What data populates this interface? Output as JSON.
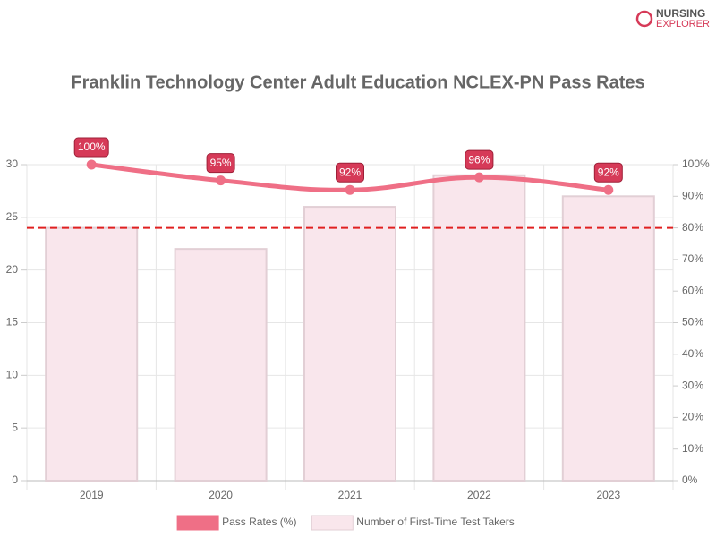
{
  "chart_data": {
    "type": "bar-line",
    "title": "Franklin Technology Center Adult Education NCLEX-PN Pass Rates",
    "logo": [
      "NURSING",
      "EXPLORER"
    ],
    "categories": [
      "2019",
      "2020",
      "2021",
      "2022",
      "2023"
    ],
    "series": [
      {
        "name": "Pass Rates (%)",
        "type": "line",
        "axis": "y2",
        "color": "#ef6f86",
        "values": [
          100,
          95,
          92,
          96,
          92
        ],
        "value_labels": [
          "100%",
          "95%",
          "92%",
          "96%",
          "92%"
        ]
      },
      {
        "name": "Number of First-Time Test Takers",
        "type": "bar",
        "axis": "y",
        "color": "#f9e6ec",
        "values": [
          24,
          22,
          26,
          29,
          27
        ]
      }
    ],
    "ylim": [
      0,
      30
    ],
    "yticks": [
      0,
      5,
      10,
      15,
      20,
      25,
      30
    ],
    "y2lim": [
      0,
      100
    ],
    "y2ticks": [
      {
        "value": 0,
        "label": "0%"
      },
      {
        "value": 10,
        "label": "10%"
      },
      {
        "value": 20,
        "label": "20%"
      },
      {
        "value": 30,
        "label": "30%"
      },
      {
        "value": 40,
        "label": "40%"
      },
      {
        "value": 50,
        "label": "50%"
      },
      {
        "value": 60,
        "label": "60%"
      },
      {
        "value": 70,
        "label": "70%"
      },
      {
        "value": 80,
        "label": "80%"
      },
      {
        "value": 90,
        "label": "90%"
      },
      {
        "value": 100,
        "label": "100%"
      }
    ],
    "threshold": {
      "value": 80,
      "axis": "y2",
      "color": "#e02020"
    },
    "grid": true,
    "legend": "bottom"
  }
}
